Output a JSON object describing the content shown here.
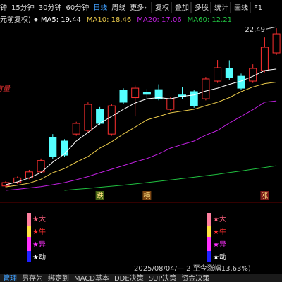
{
  "toolbar": {
    "left": [
      "钟",
      "15分钟",
      "30分钟",
      "60分钟",
      "日线",
      "周线",
      "更多›"
    ],
    "active": 4,
    "right": [
      "复权",
      "叠加",
      "多股",
      "统计",
      "画线",
      "F1"
    ]
  },
  "chart_data": {
    "type": "candlestick",
    "subtitle": "元前复权)",
    "ylim": [
      10.37,
      22.6
    ],
    "up_color": "#ff3030",
    "down_color": "#54ffff",
    "candles": {
      "open": [
        10.7,
        10.95,
        11.3,
        11.75,
        14.32,
        14.06,
        14.58,
        14.85,
        16.43,
        14.58,
        17.85,
        17.3,
        17.7,
        17.9,
        16.43,
        17.5,
        17.75,
        17.22,
        18.54,
        19.49,
        18.9,
        18.54,
        19.33,
        20.65
      ],
      "high": [
        11.05,
        11.4,
        11.9,
        12.75,
        14.58,
        14.2,
        15.5,
        16.95,
        16.6,
        16.85,
        18.0,
        18.2,
        17.95,
        18.3,
        17.35,
        18.1,
        17.85,
        18.85,
        20.12,
        20.1,
        19.1,
        19.8,
        21.8,
        22.49
      ],
      "low": [
        10.6,
        10.85,
        11.2,
        11.65,
        12.74,
        12.9,
        14.45,
        14.7,
        15.25,
        14.45,
        16.8,
        15.9,
        17.2,
        17.1,
        16.3,
        17.2,
        16.55,
        17.1,
        18.4,
        18.65,
        17.9,
        18.4,
        19.2,
        20.5
      ],
      "close": [
        10.95,
        11.3,
        11.75,
        12.6,
        12.9,
        13.0,
        15.38,
        16.8,
        15.38,
        16.69,
        16.96,
        18.01,
        17.55,
        17.22,
        17.22,
        17.4,
        16.69,
        18.7,
        19.54,
        18.8,
        18.01,
        19.49,
        21.07,
        22.07
      ]
    },
    "series": [
      {
        "name": "MA5: 19.44",
        "color": "#ffffff",
        "values": [
          10.79,
          11.0,
          11.3,
          11.7,
          12.48,
          13.1,
          14.06,
          14.7,
          15.38,
          15.9,
          16.43,
          16.9,
          17.22,
          17.3,
          17.22,
          17.4,
          17.5,
          17.8,
          18.01,
          18.3,
          18.54,
          18.9,
          19.33,
          19.44
        ]
      },
      {
        "name": "MA10: 18.46",
        "color": "#e8c84a",
        "values": [
          10.63,
          10.75,
          10.9,
          11.2,
          11.69,
          12.0,
          12.48,
          12.9,
          13.53,
          14.0,
          14.58,
          15.1,
          15.64,
          15.9,
          16.17,
          16.3,
          16.43,
          16.7,
          16.96,
          17.3,
          17.75,
          18.1,
          18.35,
          18.46
        ]
      },
      {
        "name": "MA20: 17.06",
        "color": "#c020e0",
        "values": [
          10.37,
          10.45,
          10.55,
          10.65,
          10.79,
          10.95,
          11.16,
          11.4,
          11.69,
          11.95,
          12.22,
          12.5,
          12.75,
          13.1,
          13.53,
          13.8,
          14.06,
          14.5,
          14.85,
          15.4,
          15.9,
          16.4,
          16.96,
          17.06
        ]
      },
      {
        "name": "MA60: 12.21",
        "color": "#20c040",
        "values": [
          null,
          null,
          null,
          null,
          null,
          10.37,
          10.45,
          10.52,
          10.6,
          10.68,
          10.76,
          10.85,
          10.95,
          11.05,
          11.15,
          11.25,
          11.35,
          11.46,
          11.57,
          11.7,
          11.82,
          11.95,
          12.08,
          12.21
        ]
      }
    ],
    "high_label": "22.49",
    "side_note": "有量",
    "signals": [
      {
        "text": "跌",
        "color": "#7ab020",
        "index": 8
      },
      {
        "text": "横",
        "color": "#e08020",
        "index": 12
      },
      {
        "text": "涨",
        "color": "#e03030",
        "index": 22
      }
    ]
  },
  "indicator": {
    "labels": [
      {
        "text": "★大",
        "color": "#ff6080"
      },
      {
        "text": "★牛",
        "color": "#ff3030"
      },
      {
        "text": "★异",
        "color": "#ff30ff"
      },
      {
        "text": "★动",
        "color": "#ffffff"
      }
    ]
  },
  "status": "2025/08/04/— 2 至今涨幅13.63%)",
  "tabs": [
    "管理",
    "另存为",
    "绑定到",
    "MACD基本",
    "DDE决策",
    "SUP决策",
    "资金决策"
  ]
}
